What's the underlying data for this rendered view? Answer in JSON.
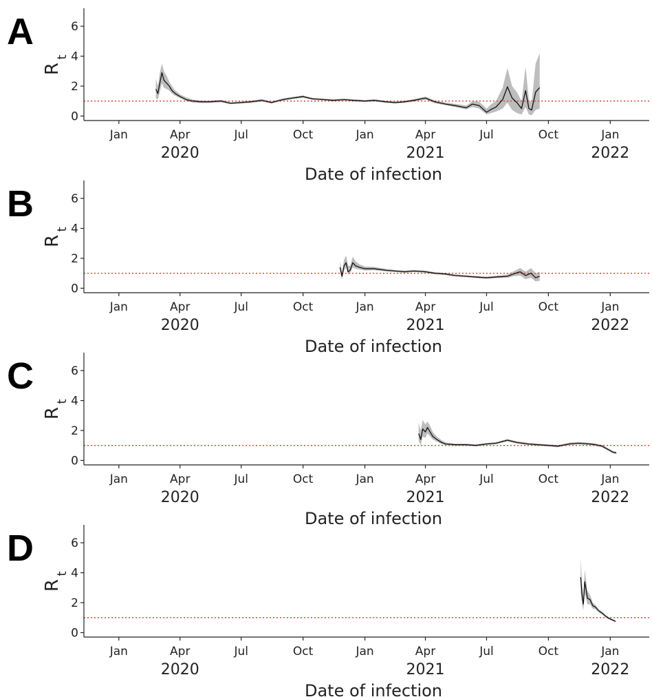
{
  "chart_data": [
    {
      "panel": "A",
      "type": "line",
      "xlabel": "Date of infection",
      "ylabel": "R",
      "ylabel_sub": "t",
      "xlim": [
        "2019-11-10",
        "2022-02-28"
      ],
      "ylim": [
        -0.3,
        7.2
      ],
      "yticks": [
        0,
        2,
        4,
        6
      ],
      "xticks": [
        {
          "date": "2020-01-01",
          "label": "Jan"
        },
        {
          "date": "2020-04-01",
          "label": "Apr"
        },
        {
          "date": "2020-07-01",
          "label": "Jul"
        },
        {
          "date": "2020-10-01",
          "label": "Oct"
        },
        {
          "date": "2021-01-01",
          "label": "Jan"
        },
        {
          "date": "2021-04-01",
          "label": "Apr"
        },
        {
          "date": "2021-07-01",
          "label": "Jul"
        },
        {
          "date": "2021-10-01",
          "label": "Oct"
        },
        {
          "date": "2022-01-01",
          "label": "Jan"
        }
      ],
      "years": [
        {
          "date": "2020-04-01",
          "label": "2020"
        },
        {
          "date": "2021-04-01",
          "label": "2021"
        },
        {
          "date": "2022-01-01",
          "label": "2022"
        }
      ],
      "reference_line": 1,
      "grid": false,
      "series": [
        {
          "x": [
            "2020-02-25",
            "2020-02-28",
            "2020-03-02",
            "2020-03-05",
            "2020-03-08",
            "2020-03-12",
            "2020-03-16",
            "2020-03-20",
            "2020-03-25",
            "2020-04-01",
            "2020-04-10",
            "2020-04-20",
            "2020-05-01",
            "2020-05-15",
            "2020-06-01",
            "2020-06-15",
            "2020-07-01",
            "2020-07-15",
            "2020-08-01",
            "2020-08-15",
            "2020-09-01",
            "2020-09-15",
            "2020-10-01",
            "2020-10-15",
            "2020-11-01",
            "2020-11-15",
            "2020-12-01",
            "2020-12-15",
            "2021-01-01",
            "2021-01-15",
            "2021-02-01",
            "2021-02-15",
            "2021-03-01",
            "2021-03-15",
            "2021-04-01",
            "2021-04-15",
            "2021-05-01",
            "2021-05-15",
            "2021-06-01",
            "2021-06-10",
            "2021-06-20",
            "2021-07-01",
            "2021-07-08",
            "2021-07-15",
            "2021-07-25",
            "2021-08-01",
            "2021-08-08",
            "2021-08-15",
            "2021-08-22",
            "2021-08-28",
            "2021-09-02",
            "2021-09-06",
            "2021-09-12",
            "2021-09-18"
          ],
          "y": [
            1.8,
            1.5,
            2.2,
            2.9,
            2.4,
            2.2,
            2.0,
            1.7,
            1.5,
            1.3,
            1.1,
            1.0,
            0.95,
            0.95,
            1.0,
            0.85,
            0.9,
            0.95,
            1.05,
            0.9,
            1.1,
            1.2,
            1.3,
            1.15,
            1.1,
            1.05,
            1.1,
            1.05,
            1.0,
            1.05,
            0.95,
            0.9,
            0.95,
            1.05,
            1.2,
            0.95,
            0.8,
            0.7,
            0.55,
            0.8,
            0.7,
            0.25,
            0.45,
            0.6,
            1.1,
            1.95,
            1.2,
            0.9,
            0.5,
            1.7,
            0.5,
            0.4,
            1.6,
            1.9
          ],
          "lower": [
            1.2,
            1.1,
            1.6,
            2.2,
            1.9,
            1.8,
            1.7,
            1.5,
            1.35,
            1.2,
            1.0,
            0.9,
            0.88,
            0.88,
            0.92,
            0.8,
            0.83,
            0.88,
            0.97,
            0.83,
            1.02,
            1.12,
            1.22,
            1.08,
            1.03,
            0.98,
            1.03,
            0.98,
            0.93,
            0.98,
            0.88,
            0.83,
            0.88,
            0.97,
            1.1,
            0.85,
            0.72,
            0.6,
            0.45,
            0.6,
            0.5,
            0.1,
            0.2,
            0.3,
            0.5,
            0.9,
            0.4,
            0.2,
            0.1,
            0.6,
            0.1,
            0.05,
            0.4,
            0.5
          ],
          "upper": [
            2.5,
            2.0,
            2.9,
            3.5,
            3.0,
            2.7,
            2.3,
            2.0,
            1.7,
            1.45,
            1.25,
            1.1,
            1.05,
            1.03,
            1.08,
            0.93,
            0.98,
            1.03,
            1.13,
            0.98,
            1.18,
            1.28,
            1.38,
            1.22,
            1.17,
            1.12,
            1.17,
            1.12,
            1.07,
            1.12,
            1.02,
            0.97,
            1.02,
            1.13,
            1.3,
            1.05,
            0.9,
            0.82,
            0.7,
            1.0,
            0.95,
            0.5,
            0.8,
            1.0,
            1.9,
            3.2,
            2.0,
            1.6,
            1.0,
            3.3,
            1.1,
            0.9,
            3.5,
            4.2
          ]
        }
      ]
    },
    {
      "panel": "B",
      "type": "line",
      "xlabel": "Date of infection",
      "ylabel": "R",
      "ylabel_sub": "t",
      "xlim": [
        "2019-11-10",
        "2022-02-28"
      ],
      "ylim": [
        -0.3,
        7.2
      ],
      "yticks": [
        0,
        2,
        4,
        6
      ],
      "xticks": [
        {
          "date": "2020-01-01",
          "label": "Jan"
        },
        {
          "date": "2020-04-01",
          "label": "Apr"
        },
        {
          "date": "2020-07-01",
          "label": "Jul"
        },
        {
          "date": "2020-10-01",
          "label": "Oct"
        },
        {
          "date": "2021-01-01",
          "label": "Jan"
        },
        {
          "date": "2021-04-01",
          "label": "Apr"
        },
        {
          "date": "2021-07-01",
          "label": "Jul"
        },
        {
          "date": "2021-10-01",
          "label": "Oct"
        },
        {
          "date": "2022-01-01",
          "label": "Jan"
        }
      ],
      "years": [
        {
          "date": "2020-04-01",
          "label": "2020"
        },
        {
          "date": "2021-04-01",
          "label": "2021"
        },
        {
          "date": "2022-01-01",
          "label": "2022"
        }
      ],
      "reference_line": 1,
      "grid": false,
      "series": [
        {
          "x": [
            "2020-11-25",
            "2020-11-28",
            "2020-12-01",
            "2020-12-04",
            "2020-12-07",
            "2020-12-10",
            "2020-12-14",
            "2020-12-18",
            "2020-12-24",
            "2021-01-01",
            "2021-01-15",
            "2021-02-01",
            "2021-02-15",
            "2021-03-01",
            "2021-03-15",
            "2021-04-01",
            "2021-04-15",
            "2021-05-01",
            "2021-05-15",
            "2021-06-01",
            "2021-06-15",
            "2021-07-01",
            "2021-07-15",
            "2021-08-01",
            "2021-08-10",
            "2021-08-20",
            "2021-08-28",
            "2021-09-05",
            "2021-09-12",
            "2021-09-18"
          ],
          "y": [
            1.4,
            0.8,
            1.5,
            1.7,
            1.1,
            1.2,
            1.7,
            1.5,
            1.4,
            1.3,
            1.3,
            1.2,
            1.15,
            1.1,
            1.15,
            1.1,
            1.0,
            0.95,
            0.85,
            0.8,
            0.75,
            0.7,
            0.75,
            0.8,
            0.95,
            1.1,
            0.85,
            1.0,
            0.7,
            0.8
          ],
          "lower": [
            1.1,
            0.6,
            1.2,
            1.4,
            0.9,
            1.0,
            1.4,
            1.3,
            1.25,
            1.18,
            1.2,
            1.12,
            1.08,
            1.03,
            1.08,
            1.03,
            0.93,
            0.88,
            0.78,
            0.73,
            0.68,
            0.63,
            0.67,
            0.7,
            0.8,
            0.85,
            0.6,
            0.7,
            0.45,
            0.5
          ],
          "upper": [
            1.8,
            1.1,
            1.9,
            2.2,
            1.5,
            1.5,
            2.1,
            1.8,
            1.6,
            1.45,
            1.42,
            1.3,
            1.22,
            1.18,
            1.22,
            1.18,
            1.07,
            1.02,
            0.92,
            0.87,
            0.82,
            0.77,
            0.83,
            0.92,
            1.12,
            1.35,
            1.1,
            1.35,
            1.0,
            1.1
          ]
        }
      ]
    },
    {
      "panel": "C",
      "type": "line",
      "xlabel": "Date of infection",
      "ylabel": "R",
      "ylabel_sub": "t",
      "xlim": [
        "2019-11-10",
        "2022-02-28"
      ],
      "ylim": [
        -0.3,
        7.2
      ],
      "yticks": [
        0,
        2,
        4,
        6
      ],
      "xticks": [
        {
          "date": "2020-01-01",
          "label": "Jan"
        },
        {
          "date": "2020-04-01",
          "label": "Apr"
        },
        {
          "date": "2020-07-01",
          "label": "Jul"
        },
        {
          "date": "2020-10-01",
          "label": "Oct"
        },
        {
          "date": "2021-01-01",
          "label": "Jan"
        },
        {
          "date": "2021-04-01",
          "label": "Apr"
        },
        {
          "date": "2021-07-01",
          "label": "Jul"
        },
        {
          "date": "2021-10-01",
          "label": "Oct"
        },
        {
          "date": "2022-01-01",
          "label": "Jan"
        }
      ],
      "years": [
        {
          "date": "2020-04-01",
          "label": "2020"
        },
        {
          "date": "2021-04-01",
          "label": "2021"
        },
        {
          "date": "2022-01-01",
          "label": "2022"
        }
      ],
      "reference_line": 1,
      "grid": false,
      "series": [
        {
          "x": [
            "2021-03-22",
            "2021-03-25",
            "2021-03-28",
            "2021-04-01",
            "2021-04-04",
            "2021-04-08",
            "2021-04-12",
            "2021-04-18",
            "2021-04-25",
            "2021-05-01",
            "2021-05-15",
            "2021-06-01",
            "2021-06-15",
            "2021-07-01",
            "2021-07-15",
            "2021-08-01",
            "2021-08-15",
            "2021-09-01",
            "2021-09-15",
            "2021-10-01",
            "2021-10-15",
            "2021-11-01",
            "2021-11-15",
            "2021-12-01",
            "2021-12-10",
            "2021-12-20",
            "2021-12-28",
            "2022-01-05",
            "2022-01-10"
          ],
          "y": [
            1.8,
            1.4,
            2.1,
            1.9,
            2.2,
            1.9,
            1.6,
            1.4,
            1.2,
            1.1,
            1.05,
            1.05,
            1.0,
            1.1,
            1.15,
            1.35,
            1.2,
            1.1,
            1.05,
            1.0,
            0.95,
            1.1,
            1.15,
            1.1,
            1.05,
            0.95,
            0.75,
            0.55,
            0.5
          ],
          "lower": [
            1.3,
            1.0,
            1.6,
            1.5,
            1.8,
            1.6,
            1.4,
            1.25,
            1.1,
            1.02,
            0.98,
            0.98,
            0.93,
            1.03,
            1.08,
            1.27,
            1.12,
            1.03,
            0.98,
            0.93,
            0.88,
            1.02,
            1.07,
            1.02,
            0.97,
            0.87,
            0.67,
            0.47,
            0.42
          ],
          "upper": [
            2.5,
            2.0,
            2.7,
            2.4,
            2.6,
            2.3,
            1.9,
            1.6,
            1.35,
            1.2,
            1.12,
            1.12,
            1.07,
            1.17,
            1.22,
            1.43,
            1.28,
            1.17,
            1.12,
            1.07,
            1.02,
            1.18,
            1.23,
            1.18,
            1.13,
            1.03,
            0.83,
            0.63,
            0.58
          ]
        }
      ]
    },
    {
      "panel": "D",
      "type": "line",
      "xlabel": "Date of infection",
      "ylabel": "R",
      "ylabel_sub": "t",
      "xlim": [
        "2019-11-10",
        "2022-02-28"
      ],
      "ylim": [
        -0.3,
        7.2
      ],
      "yticks": [
        0,
        2,
        4,
        6
      ],
      "xticks": [
        {
          "date": "2020-01-01",
          "label": "Jan"
        },
        {
          "date": "2020-04-01",
          "label": "Apr"
        },
        {
          "date": "2020-07-01",
          "label": "Jul"
        },
        {
          "date": "2020-10-01",
          "label": "Oct"
        },
        {
          "date": "2021-01-01",
          "label": "Jan"
        },
        {
          "date": "2021-04-01",
          "label": "Apr"
        },
        {
          "date": "2021-07-01",
          "label": "Jul"
        },
        {
          "date": "2021-10-01",
          "label": "Oct"
        },
        {
          "date": "2022-01-01",
          "label": "Jan"
        }
      ],
      "years": [
        {
          "date": "2020-04-01",
          "label": "2020"
        },
        {
          "date": "2021-04-01",
          "label": "2021"
        },
        {
          "date": "2022-01-01",
          "label": "2022"
        }
      ],
      "reference_line": 1,
      "grid": false,
      "series": [
        {
          "x": [
            "2021-11-18",
            "2021-11-20",
            "2021-11-22",
            "2021-11-24",
            "2021-11-26",
            "2021-11-28",
            "2021-12-02",
            "2021-12-06",
            "2021-12-10",
            "2021-12-15",
            "2021-12-20",
            "2021-12-25",
            "2021-12-30",
            "2022-01-04",
            "2022-01-09"
          ],
          "y": [
            3.7,
            2.5,
            1.9,
            3.4,
            2.9,
            2.3,
            2.2,
            1.8,
            1.7,
            1.45,
            1.3,
            1.1,
            0.95,
            0.85,
            0.75
          ],
          "lower": [
            2.7,
            1.9,
            1.5,
            2.6,
            2.3,
            1.9,
            1.9,
            1.6,
            1.55,
            1.35,
            1.2,
            1.02,
            0.88,
            0.78,
            0.7
          ],
          "upper": [
            5.0,
            3.3,
            2.4,
            4.2,
            3.5,
            2.8,
            2.5,
            2.0,
            1.85,
            1.55,
            1.4,
            1.18,
            1.02,
            0.92,
            0.8
          ]
        }
      ]
    }
  ]
}
